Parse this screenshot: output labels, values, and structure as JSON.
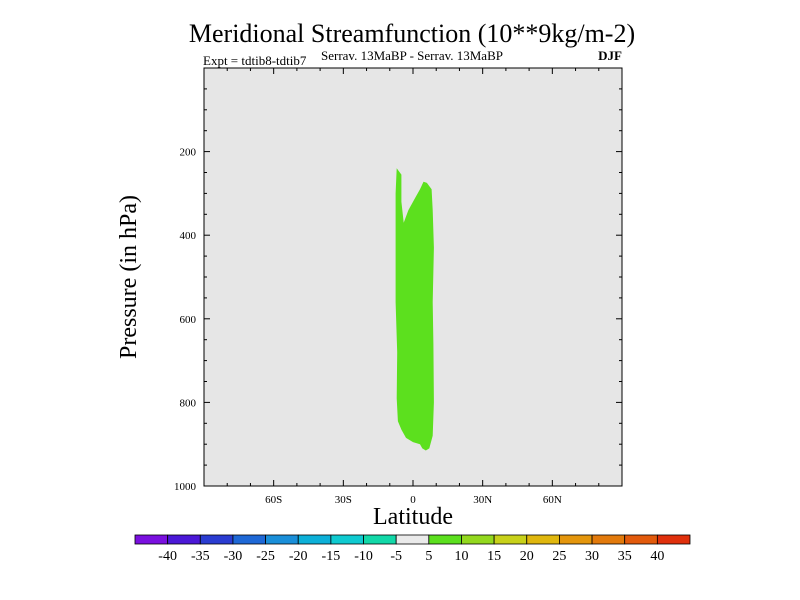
{
  "chart_data": {
    "type": "contour",
    "title": "Meridional Streamfunction (10**9kg/m-2)",
    "subtitle_left": "Expt = tdtib8-tdtib7",
    "subtitle_center": "Serrav.   13MaBP - Serrav.   13MaBP",
    "subtitle_right": "DJF",
    "xlabel": "Latitude",
    "ylabel": "Pressure (in hPa)",
    "xlim": [
      -90,
      90
    ],
    "ylim": [
      1000,
      0
    ],
    "x_ticks": [
      {
        "value": -60,
        "label": "60S"
      },
      {
        "value": -30,
        "label": "30S"
      },
      {
        "value": 0,
        "label": "0"
      },
      {
        "value": 30,
        "label": "30N"
      },
      {
        "value": 60,
        "label": "60N"
      }
    ],
    "y_ticks": [
      {
        "value": 200,
        "label": "200"
      },
      {
        "value": 400,
        "label": "400"
      },
      {
        "value": 600,
        "label": "600"
      },
      {
        "value": 800,
        "label": "800"
      },
      {
        "value": 1000,
        "label": "1000"
      }
    ],
    "background_color": "#e6e6e6",
    "filled_regions": [
      {
        "level_range": [
          5,
          10
        ],
        "color": "#5ce01e",
        "polygon": [
          [
            -7,
            240
          ],
          [
            -5,
            255
          ],
          [
            -5,
            320
          ],
          [
            -4,
            370
          ],
          [
            -2,
            340
          ],
          [
            1,
            310
          ],
          [
            3,
            290
          ],
          [
            4.5,
            272
          ],
          [
            6,
            275
          ],
          [
            8,
            290
          ],
          [
            8.5,
            340
          ],
          [
            9,
            430
          ],
          [
            8.5,
            560
          ],
          [
            8.8,
            660
          ],
          [
            9,
            800
          ],
          [
            8.5,
            880
          ],
          [
            7,
            910
          ],
          [
            5.5,
            915
          ],
          [
            4,
            910
          ],
          [
            3,
            900
          ],
          [
            0,
            895
          ],
          [
            -3,
            885
          ],
          [
            -5,
            865
          ],
          [
            -6.5,
            845
          ],
          [
            -7,
            790
          ],
          [
            -6.8,
            680
          ],
          [
            -7.5,
            560
          ],
          [
            -7.5,
            430
          ],
          [
            -7.5,
            300
          ]
        ]
      }
    ],
    "colorbar": {
      "labels": [
        "-40",
        "-35",
        "-30",
        "-25",
        "-20",
        "-15",
        "-10",
        "-5",
        "5",
        "10",
        "15",
        "20",
        "25",
        "30",
        "35",
        "40"
      ],
      "colors": [
        "#7a10df",
        "#4b18d7",
        "#2a3cd1",
        "#1e68d6",
        "#1a8fd9",
        "#0cb0d8",
        "#0fcad0",
        "#12d8a8",
        "#eaeaea",
        "#5ce01e",
        "#93d81e",
        "#c8d11a",
        "#e0b70e",
        "#e4960c",
        "#e27a0c",
        "#e25a0c",
        "#e0300c"
      ]
    }
  }
}
